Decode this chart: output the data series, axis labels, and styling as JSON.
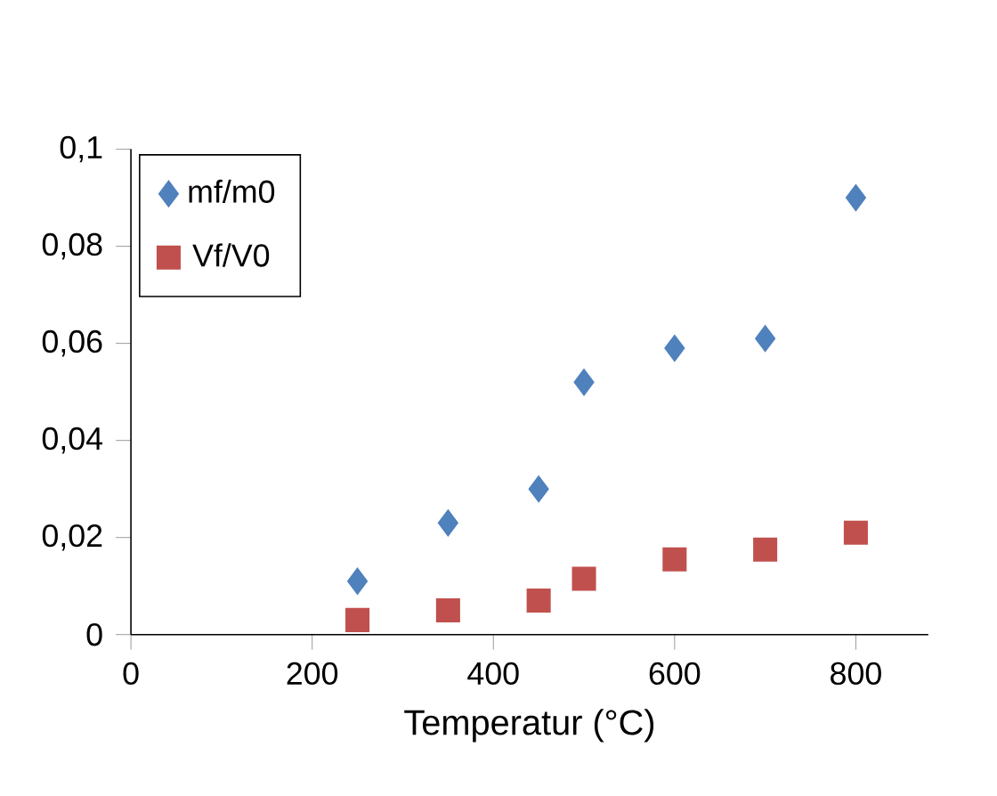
{
  "chart_data": {
    "type": "scatter",
    "xlabel": "Temperatur (°C)",
    "x": [
      250,
      350,
      450,
      500,
      600,
      700,
      800
    ],
    "series": [
      {
        "name": "mf/m0",
        "color": "#4f81bd",
        "marker": "diamond",
        "values": [
          0.011,
          0.023,
          0.03,
          0.052,
          0.059,
          0.061,
          0.09
        ]
      },
      {
        "name": "Vf/V0",
        "color": "#c0504d",
        "marker": "square",
        "values": [
          0.003,
          0.005,
          0.007,
          0.0115,
          0.0155,
          0.0175,
          0.021
        ]
      }
    ],
    "xlim": [
      0,
      880
    ],
    "ylim": [
      0,
      0.1
    ],
    "xticks": [
      0,
      200,
      400,
      600,
      800
    ],
    "yticks": [
      {
        "value": 0,
        "label": "0"
      },
      {
        "value": 0.02,
        "label": "0,02"
      },
      {
        "value": 0.04,
        "label": "0,04"
      },
      {
        "value": 0.06,
        "label": "0,06"
      },
      {
        "value": 0.08,
        "label": "0,08"
      },
      {
        "value": 0.1,
        "label": "0,1"
      }
    ],
    "grid": false,
    "legend": "top left"
  }
}
